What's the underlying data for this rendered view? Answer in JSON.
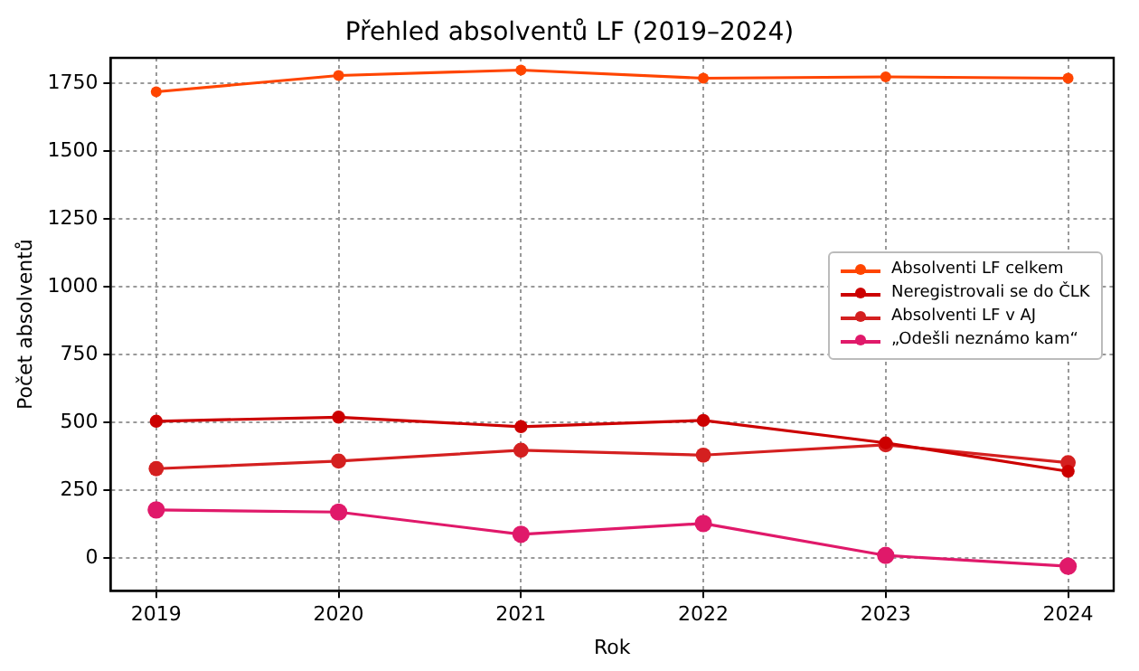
{
  "chart_data": {
    "type": "line",
    "title": "Přehled absolventů LF (2019–2024)",
    "xlabel": "Rok",
    "ylabel": "Počet absolventů",
    "x": [
      2019,
      2020,
      2021,
      2022,
      2023,
      2024
    ],
    "series": [
      {
        "name": "Absolventi LF celkem",
        "color": "#ff4500",
        "values": [
          1720,
          1780,
          1800,
          1770,
          1775,
          1770
        ]
      },
      {
        "name": "Neregistrovali se do ČLK",
        "color": "#cc0000",
        "values": [
          505,
          520,
          485,
          508,
          425,
          320
        ]
      },
      {
        "name": "Absolventi LF v AJ",
        "color": "#d42020",
        "values": [
          330,
          358,
          398,
          380,
          418,
          352
        ]
      },
      {
        "name": "„Odešli neznámo kam“",
        "color": "#e0196a",
        "values": [
          178,
          170,
          88,
          128,
          10,
          -30
        ]
      }
    ],
    "xlim": [
      2018.75,
      2024.25
    ],
    "xticks": [
      2019,
      2020,
      2021,
      2022,
      2023,
      2024
    ],
    "ylim": [
      -120,
      1845
    ],
    "yticks": [
      0,
      250,
      500,
      750,
      1000,
      1250,
      1500,
      1750
    ],
    "grid": true,
    "legend": "right",
    "marker": "circle",
    "line_style": "solid"
  }
}
